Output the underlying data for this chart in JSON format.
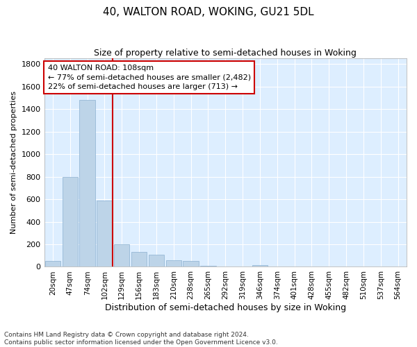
{
  "title": "40, WALTON ROAD, WOKING, GU21 5DL",
  "subtitle": "Size of property relative to semi-detached houses in Woking",
  "xlabel": "Distribution of semi-detached houses by size in Woking",
  "ylabel": "Number of semi-detached properties",
  "footer_line1": "Contains HM Land Registry data © Crown copyright and database right 2024.",
  "footer_line2": "Contains public sector information licensed under the Open Government Licence v3.0.",
  "bar_labels": [
    "20sqm",
    "47sqm",
    "74sqm",
    "102sqm",
    "129sqm",
    "156sqm",
    "183sqm",
    "210sqm",
    "238sqm",
    "265sqm",
    "292sqm",
    "319sqm",
    "346sqm",
    "374sqm",
    "401sqm",
    "428sqm",
    "455sqm",
    "482sqm",
    "510sqm",
    "537sqm",
    "564sqm"
  ],
  "bar_values": [
    55,
    800,
    1480,
    590,
    200,
    130,
    110,
    60,
    50,
    10,
    0,
    0,
    15,
    0,
    0,
    0,
    0,
    0,
    0,
    0,
    0
  ],
  "bar_color": "#bdd4e8",
  "bar_edge_color": "#8ab0d0",
  "bg_color": "#ddeeff",
  "grid_color": "#ffffff",
  "vline_x_index": 3,
  "vline_color": "#cc0000",
  "annotation_line1": "40 WALTON ROAD: 108sqm",
  "annotation_line2": "← 77% of semi-detached houses are smaller (2,482)",
  "annotation_line3": "22% of semi-detached houses are larger (713) →",
  "annotation_box_color": "#cc0000",
  "ylim": [
    0,
    1850
  ],
  "yticks": [
    0,
    200,
    400,
    600,
    800,
    1000,
    1200,
    1400,
    1600,
    1800
  ],
  "title_fontsize": 11,
  "subtitle_fontsize": 9
}
